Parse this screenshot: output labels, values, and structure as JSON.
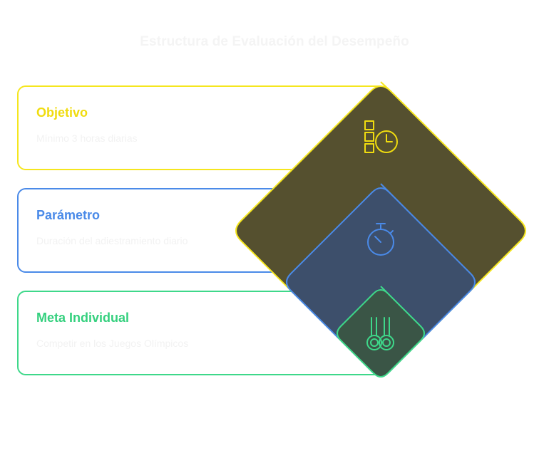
{
  "title": "Estructura de Evaluación del Desempeño",
  "cards": [
    {
      "heading": "Objetivo",
      "description": "Mínimo 3 horas diarias",
      "icon": "schedule-clock-icon",
      "color": "#f5e61e",
      "fill": "#55502f"
    },
    {
      "heading": "Parámetro",
      "description": "Duración del adiestramiento diario",
      "icon": "stopwatch-icon",
      "color": "#4a8ae8",
      "fill": "#3d4f6b"
    },
    {
      "heading": "Meta Individual",
      "description": "Competir en los Juegos Olímpicos",
      "icon": "gymnastic-rings-icon",
      "color": "#3ed88a",
      "fill": "#3a5546"
    }
  ]
}
